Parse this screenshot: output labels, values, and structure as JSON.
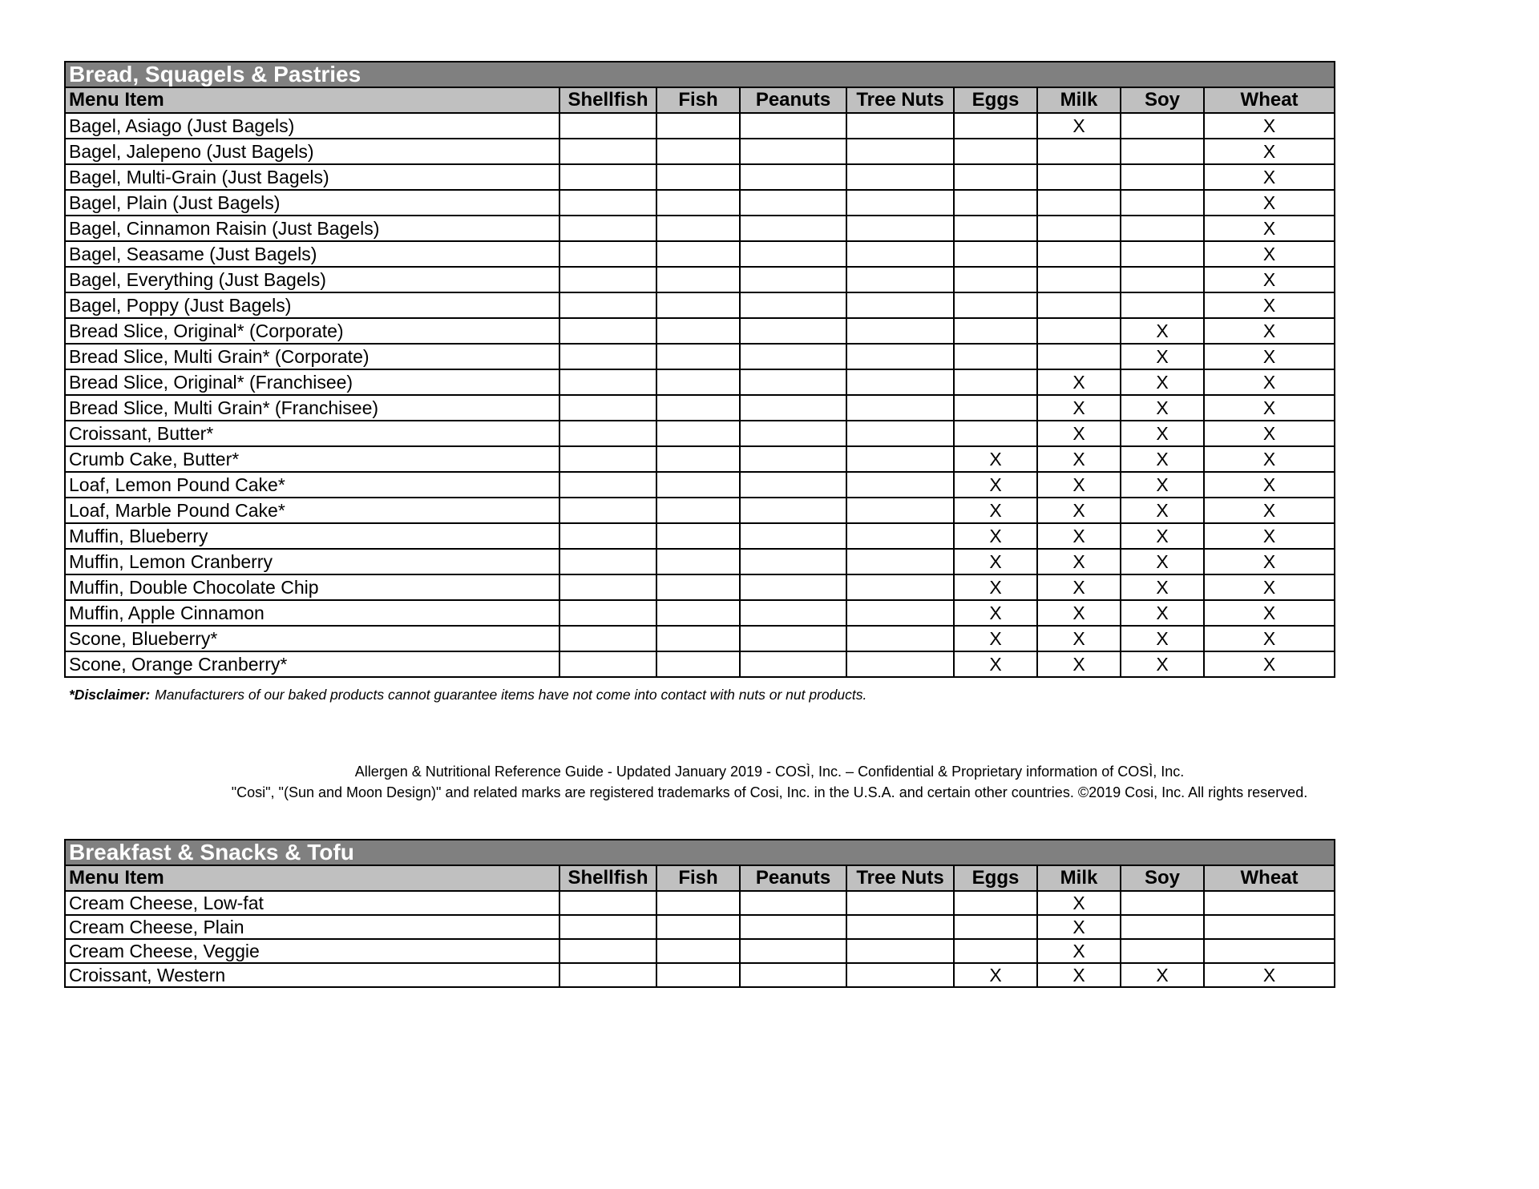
{
  "columns": [
    "Menu Item",
    "Shellfish",
    "Fish",
    "Peanuts",
    "Tree Nuts",
    "Eggs",
    "Milk",
    "Soy",
    "Wheat"
  ],
  "sections": [
    {
      "title": "Bread, Squagels & Pastries",
      "rows": [
        {
          "item": "Bagel, Asiago (Just Bagels)",
          "marks": [
            "",
            "",
            "",
            "",
            "",
            "X",
            "",
            "X"
          ]
        },
        {
          "item": "Bagel, Jalepeno (Just Bagels)",
          "marks": [
            "",
            "",
            "",
            "",
            "",
            "",
            "",
            "X"
          ]
        },
        {
          "item": "Bagel, Multi-Grain (Just Bagels)",
          "marks": [
            "",
            "",
            "",
            "",
            "",
            "",
            "",
            "X"
          ]
        },
        {
          "item": "Bagel, Plain (Just Bagels)",
          "marks": [
            "",
            "",
            "",
            "",
            "",
            "",
            "",
            "X"
          ]
        },
        {
          "item": "Bagel, Cinnamon Raisin (Just Bagels)",
          "marks": [
            "",
            "",
            "",
            "",
            "",
            "",
            "",
            "X"
          ]
        },
        {
          "item": "Bagel, Seasame (Just Bagels)",
          "marks": [
            "",
            "",
            "",
            "",
            "",
            "",
            "",
            "X"
          ]
        },
        {
          "item": "Bagel, Everything (Just Bagels)",
          "marks": [
            "",
            "",
            "",
            "",
            "",
            "",
            "",
            "X"
          ]
        },
        {
          "item": "Bagel, Poppy (Just Bagels)",
          "marks": [
            "",
            "",
            "",
            "",
            "",
            "",
            "",
            "X"
          ]
        },
        {
          "item": "Bread Slice, Original* (Corporate)",
          "marks": [
            "",
            "",
            "",
            "",
            "",
            "",
            "X",
            "X"
          ]
        },
        {
          "item": "Bread Slice, Multi Grain* (Corporate)",
          "marks": [
            "",
            "",
            "",
            "",
            "",
            "",
            "X",
            "X"
          ]
        },
        {
          "item": "Bread Slice, Original* (Franchisee)",
          "marks": [
            "",
            "",
            "",
            "",
            "",
            "X",
            "X",
            "X"
          ]
        },
        {
          "item": "Bread Slice, Multi Grain* (Franchisee)",
          "marks": [
            "",
            "",
            "",
            "",
            "",
            "X",
            "X",
            "X"
          ]
        },
        {
          "item": "Croissant, Butter*",
          "marks": [
            "",
            "",
            "",
            "",
            "",
            "X",
            "X",
            "X"
          ]
        },
        {
          "item": "Crumb Cake, Butter*",
          "marks": [
            "",
            "",
            "",
            "",
            "X",
            "X",
            "X",
            "X"
          ]
        },
        {
          "item": "Loaf, Lemon Pound Cake*",
          "marks": [
            "",
            "",
            "",
            "",
            "X",
            "X",
            "X",
            "X"
          ]
        },
        {
          "item": "Loaf, Marble Pound Cake*",
          "marks": [
            "",
            "",
            "",
            "",
            "X",
            "X",
            "X",
            "X"
          ]
        },
        {
          "item": "Muffin, Blueberry",
          "marks": [
            "",
            "",
            "",
            "",
            "X",
            "X",
            "X",
            "X"
          ]
        },
        {
          "item": "Muffin, Lemon Cranberry",
          "marks": [
            "",
            "",
            "",
            "",
            "X",
            "X",
            "X",
            "X"
          ]
        },
        {
          "item": "Muffin, Double Chocolate Chip",
          "marks": [
            "",
            "",
            "",
            "",
            "X",
            "X",
            "X",
            "X"
          ]
        },
        {
          "item": "Muffin, Apple Cinnamon",
          "marks": [
            "",
            "",
            "",
            "",
            "X",
            "X",
            "X",
            "X"
          ]
        },
        {
          "item": "Scone, Blueberry*",
          "marks": [
            "",
            "",
            "",
            "",
            "X",
            "X",
            "X",
            "X"
          ]
        },
        {
          "item": "Scone, Orange Cranberry*",
          "marks": [
            "",
            "",
            "",
            "",
            "X",
            "X",
            "X",
            "X"
          ]
        }
      ]
    },
    {
      "title": "Breakfast & Snacks & Tofu",
      "rows": [
        {
          "item": "Cream Cheese, Low-fat",
          "marks": [
            "",
            "",
            "",
            "",
            "",
            "X",
            "",
            ""
          ]
        },
        {
          "item": "Cream Cheese, Plain",
          "marks": [
            "",
            "",
            "",
            "",
            "",
            "X",
            "",
            ""
          ]
        },
        {
          "item": "Cream Cheese, Veggie",
          "marks": [
            "",
            "",
            "",
            "",
            "",
            "X",
            "",
            ""
          ]
        },
        {
          "item": "Croissant, Western",
          "marks": [
            "",
            "",
            "",
            "",
            "X",
            "X",
            "X",
            "X"
          ]
        }
      ]
    }
  ],
  "disclaimer": {
    "label": "*Disclaimer:",
    "text": "Manufacturers of our baked products cannot guarantee items have not come into contact with nuts or nut products."
  },
  "footer": {
    "line1": "Allergen & Nutritional Reference Guide - Updated January 2019 - COSÌ, Inc. – Confidential & Proprietary information of COSÌ, Inc.",
    "line2": "\"Cosi\", \"(Sun and Moon Design)\" and related marks are registered trademarks of Cosi, Inc. in the U.S.A. and certain other countries. ©2019 Cosi, Inc. All rights reserved."
  },
  "colors": {
    "title_bar": "#808080",
    "header_row": "#c0c0c0"
  }
}
